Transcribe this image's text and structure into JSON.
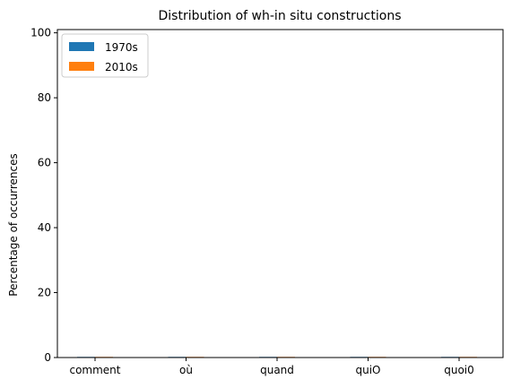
{
  "chart_data": {
    "type": "bar",
    "title": "Distribution of wh-in situ constructions",
    "xlabel": "",
    "ylabel": "Percentage of occurrences",
    "categories": [
      "comment",
      "où",
      "quand",
      "quiO",
      "quoi0"
    ],
    "series": [
      {
        "name": "1970s",
        "color": "#1f77b4",
        "values": [
          0.2,
          0.2,
          0.2,
          0.2,
          0.2
        ]
      },
      {
        "name": "2010s",
        "color": "#ff7f0e",
        "values": [
          0.2,
          0.2,
          0.2,
          0.2,
          0.2
        ]
      }
    ],
    "ylim": [
      0,
      101
    ],
    "yticks": [
      0,
      20,
      40,
      60,
      80,
      100
    ],
    "grid": false,
    "legend_position": "top-left"
  }
}
